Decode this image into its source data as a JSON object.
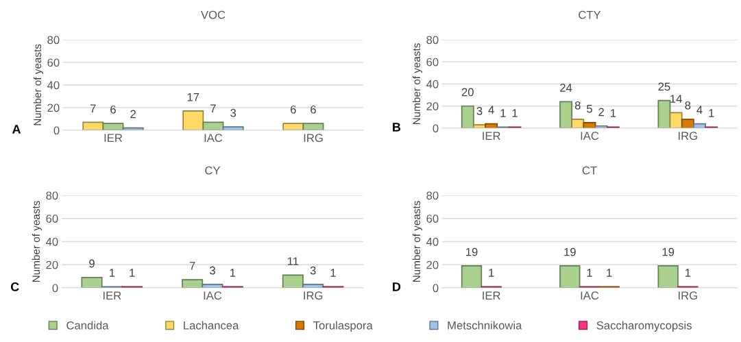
{
  "chart_data": [
    {
      "type": "bar",
      "title": "VOC",
      "ylabel": "Number of yeasts",
      "annotations": [
        "A"
      ],
      "categories": [
        "IER",
        "IAC",
        "IRG"
      ],
      "ylim": [
        0,
        80
      ],
      "yticks": [
        0,
        20,
        40,
        60,
        80
      ],
      "grid": "y",
      "data_labels": true,
      "legend": "bottom",
      "series": [
        {
          "name": "Lachancea",
          "color": "#ffd966",
          "values": [
            7,
            17,
            6
          ]
        },
        {
          "name": "Candida",
          "color": "#a9d18e",
          "values": [
            6,
            7,
            6
          ]
        },
        {
          "name": "Metschnikowia",
          "color": "#9dc3e6",
          "values": [
            2,
            3,
            null
          ]
        }
      ]
    },
    {
      "type": "bar",
      "title": "CTY",
      "ylabel": "Number of yeasts",
      "annotations": [
        "B"
      ],
      "categories": [
        "IER",
        "IAC",
        "IRG"
      ],
      "ylim": [
        0,
        80
      ],
      "yticks": [
        0,
        20,
        40,
        60,
        80
      ],
      "grid": "y",
      "data_labels": true,
      "legend": "bottom",
      "series": [
        {
          "name": "Candida",
          "color": "#a9d18e",
          "values": [
            20,
            24,
            25
          ]
        },
        {
          "name": "Lachancea",
          "color": "#ffd966",
          "values": [
            3,
            8,
            14
          ]
        },
        {
          "name": "Torulaspora",
          "color": "#d97a00",
          "values": [
            4,
            5,
            8
          ]
        },
        {
          "name": "Metschnikowia",
          "color": "#9dc3e6",
          "values": [
            1,
            2,
            4
          ]
        },
        {
          "name": "Saccharomycopsis",
          "color": "#ff3385",
          "values": [
            1,
            1,
            1
          ]
        }
      ]
    },
    {
      "type": "bar",
      "title": "CY",
      "ylabel": "Number of yeasts",
      "annotations": [
        "C"
      ],
      "categories": [
        "IER",
        "IAC",
        "IRG"
      ],
      "ylim": [
        0,
        80
      ],
      "yticks": [
        0,
        20,
        40,
        60,
        80
      ],
      "grid": "y",
      "data_labels": true,
      "legend": "bottom",
      "series": [
        {
          "name": "Candida",
          "color": "#a9d18e",
          "values": [
            9,
            7,
            11
          ]
        },
        {
          "name": "Metschnikowia",
          "color": "#9dc3e6",
          "values": [
            1,
            3,
            3
          ]
        },
        {
          "name": "Saccharomycopsis",
          "color": "#ff3385",
          "values": [
            1,
            1,
            1
          ]
        }
      ]
    },
    {
      "type": "bar",
      "title": "CT",
      "ylabel": "Number of yeasts",
      "annotations": [
        "D"
      ],
      "categories": [
        "IER",
        "IAC",
        "IRG"
      ],
      "ylim": [
        0,
        80
      ],
      "yticks": [
        0,
        20,
        40,
        60,
        80
      ],
      "grid": "y",
      "data_labels": true,
      "legend": "bottom",
      "series": [
        {
          "name": "Candida",
          "color": "#a9d18e",
          "values": [
            19,
            19,
            19
          ]
        },
        {
          "name": "Saccharomycopsis",
          "color": "#ff3385",
          "values": [
            1,
            1,
            1
          ]
        },
        {
          "name": "Torulaspora",
          "color": "#d97a00",
          "values": [
            null,
            1,
            null
          ]
        }
      ]
    }
  ]
}
